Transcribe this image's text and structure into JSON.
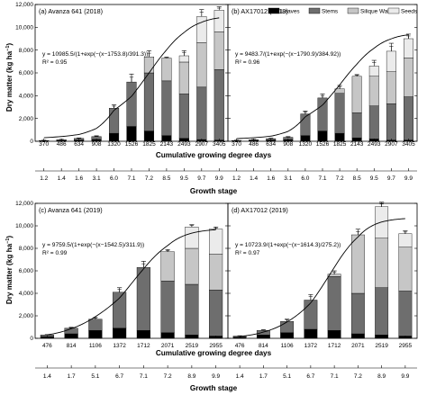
{
  "figure": {
    "ylabel": "Dry matter (kg ha",
    "ylabel_sup": "−1",
    "ylabel_close": ")",
    "xlabel_gdd": "Cumulative growing degree days",
    "xlabel_stage": "Growth stage",
    "legend": [
      "Leaves",
      "Stems",
      "Silique Walls",
      "Seeds"
    ],
    "colors": {
      "leaves": "#000000",
      "stems": "#6e6e6e",
      "silique_walls": "#c6c6c6",
      "seeds": "#ebebeb",
      "curve": "#000000"
    }
  },
  "chart_data": [
    {
      "panel": "a",
      "type": "bar",
      "stacked": true,
      "title": "(a) Avanza 641 (2018)",
      "equation": "y = 10985.5/(1+exp(−(x−1753.8)/391.3))",
      "r2": "R² = 0.95",
      "categories": [
        "370",
        "486",
        "634",
        "908",
        "1320",
        "1526",
        "1825",
        "2143",
        "2493",
        "2907",
        "3405"
      ],
      "growth_stage": [
        "1.2",
        "1.4",
        "1.6",
        "3.1",
        "6.0",
        "7.1",
        "7.2",
        "8.5",
        "9.5",
        "9.7",
        "9.9"
      ],
      "ylim": [
        0,
        12000
      ],
      "yticks": [
        "0",
        "2,000",
        "4,000",
        "6,000",
        "8,000",
        "10,000",
        "12,000"
      ],
      "series": [
        {
          "name": "Leaves",
          "values": [
            30,
            60,
            100,
            160,
            700,
            1300,
            900,
            500,
            250,
            150,
            100
          ]
        },
        {
          "name": "Stems",
          "values": [
            40,
            80,
            150,
            250,
            2200,
            3900,
            5100,
            4800,
            3900,
            4600,
            6200
          ]
        },
        {
          "name": "Silique Walls",
          "values": [
            0,
            0,
            0,
            0,
            0,
            0,
            1400,
            2000,
            2800,
            3900,
            3300
          ]
        },
        {
          "name": "Seeds",
          "values": [
            0,
            0,
            0,
            0,
            0,
            0,
            0,
            0,
            550,
            2300,
            1900
          ]
        }
      ],
      "errors": [
        15,
        25,
        40,
        70,
        300,
        700,
        550,
        80,
        450,
        600,
        300
      ],
      "curve": {
        "a": 10985.5,
        "x0": 1753.8,
        "b": 391.3
      }
    },
    {
      "panel": "b",
      "type": "bar",
      "stacked": true,
      "title": "(b) AX17012 (2018)",
      "equation": "y = 9483.7/(1+exp(−(x−1790.9)/384.92))",
      "r2": "R² = 0.96",
      "categories": [
        "370",
        "486",
        "634",
        "908",
        "1320",
        "1526",
        "1825",
        "2143",
        "2493",
        "2907",
        "3405"
      ],
      "growth_stage": [
        "1.2",
        "1.4",
        "1.6",
        "3.1",
        "6.0",
        "7.1",
        "7.2",
        "8.5",
        "9.5",
        "9.7",
        "9.9"
      ],
      "ylim": [
        0,
        12000
      ],
      "yticks": [
        "0",
        "2,000",
        "4,000",
        "6,000",
        "8,000",
        "10,000",
        "12,000"
      ],
      "series": [
        {
          "name": "Leaves",
          "values": [
            30,
            60,
            100,
            150,
            500,
            900,
            700,
            300,
            200,
            100,
            100
          ]
        },
        {
          "name": "Stems",
          "values": [
            40,
            80,
            130,
            200,
            1900,
            2900,
            3500,
            2200,
            2900,
            3200,
            3800
          ]
        },
        {
          "name": "Silique Walls",
          "values": [
            0,
            0,
            0,
            0,
            0,
            0,
            400,
            3200,
            2600,
            2800,
            3400
          ]
        },
        {
          "name": "Seeds",
          "values": [
            0,
            0,
            0,
            0,
            0,
            0,
            0,
            0,
            900,
            1800,
            1700
          ]
        }
      ],
      "errors": [
        15,
        25,
        40,
        60,
        250,
        350,
        300,
        150,
        500,
        700,
        400
      ],
      "curve": {
        "a": 9483.7,
        "x0": 1790.9,
        "b": 384.92
      }
    },
    {
      "panel": "c",
      "type": "bar",
      "stacked": true,
      "title": "(c) Avanza 641 (2019)",
      "equation": "y = 9759.5/(1+exp(−(x−1542.5)/311.9))",
      "r2": "R² = 0.99",
      "categories": [
        "476",
        "814",
        "1106",
        "1372",
        "1712",
        "2071",
        "2519",
        "2955"
      ],
      "growth_stage": [
        "1.4",
        "1.7",
        "5.1",
        "6.7",
        "7.1",
        "7.2",
        "8.9",
        "9.9"
      ],
      "ylim": [
        0,
        12000
      ],
      "yticks": [
        "0",
        "2,000",
        "4,000",
        "6,000",
        "8,000",
        "10,000",
        "12,000"
      ],
      "series": [
        {
          "name": "Leaves",
          "values": [
            150,
            400,
            700,
            900,
            700,
            500,
            300,
            200
          ]
        },
        {
          "name": "Stems",
          "values": [
            150,
            500,
            1000,
            3200,
            5600,
            4600,
            4500,
            4100
          ]
        },
        {
          "name": "Silique Walls",
          "values": [
            0,
            0,
            0,
            0,
            0,
            2600,
            3200,
            3200
          ]
        },
        {
          "name": "Seeds",
          "values": [
            0,
            0,
            0,
            0,
            0,
            0,
            1900,
            2200
          ]
        }
      ],
      "errors": [
        30,
        80,
        150,
        400,
        550,
        200,
        200,
        200
      ],
      "curve": {
        "a": 9759.5,
        "x0": 1542.5,
        "b": 311.9
      }
    },
    {
      "panel": "d",
      "type": "bar",
      "stacked": true,
      "title": "(d) AX17012 (2019)",
      "equation": "y = 10723.9/(1+exp(−(x−1614.3)/275.2))",
      "r2": "R² = 0.97",
      "categories": [
        "476",
        "814",
        "1106",
        "1372",
        "1712",
        "2071",
        "2519",
        "2955"
      ],
      "growth_stage": [
        "1.4",
        "1.7",
        "5.1",
        "6.7",
        "7.1",
        "7.2",
        "8.9",
        "9.9"
      ],
      "ylim": [
        0,
        12000
      ],
      "yticks": [
        "0",
        "2,000",
        "4,000",
        "6,000",
        "8,000",
        "10,000",
        "12,000"
      ],
      "series": [
        {
          "name": "Leaves",
          "values": [
            100,
            300,
            500,
            800,
            700,
            400,
            300,
            200
          ]
        },
        {
          "name": "Stems",
          "values": [
            100,
            400,
            1000,
            2600,
            4800,
            3600,
            4200,
            4000
          ]
        },
        {
          "name": "Silique Walls",
          "values": [
            0,
            0,
            0,
            0,
            200,
            5200,
            4400,
            3900
          ]
        },
        {
          "name": "Seeds",
          "values": [
            0,
            0,
            0,
            0,
            0,
            0,
            2800,
            1200
          ]
        }
      ],
      "errors": [
        30,
        60,
        200,
        500,
        300,
        500,
        400,
        250
      ],
      "curve": {
        "a": 10723.9,
        "x0": 1614.3,
        "b": 275.2
      }
    }
  ]
}
